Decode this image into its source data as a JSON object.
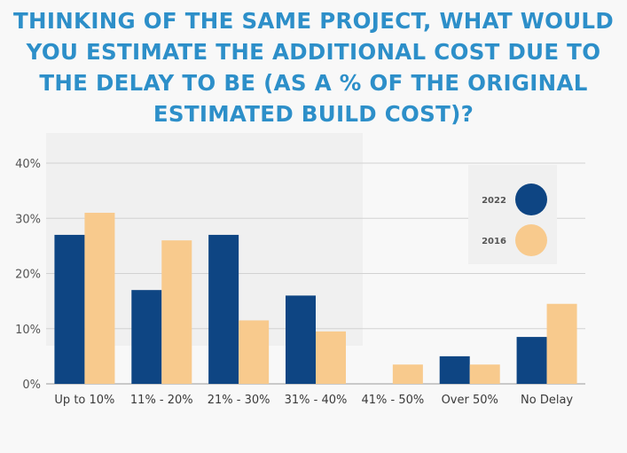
{
  "chart_data": {
    "type": "bar",
    "title_lines": [
      "THINKING OF THE SAME PROJECT, WHAT WOULD",
      "YOU ESTIMATE THE ADDITIONAL COST DUE TO",
      "THE DELAY TO BE (AS A % OF THE ORIGINAL",
      "ESTIMATED BUILD COST)?"
    ],
    "categories": [
      "Up to 10%",
      "11% - 20%",
      "21% - 30%",
      "31% - 40%",
      "41% - 50%",
      "Over 50%",
      "No Delay"
    ],
    "series": [
      {
        "name": "2022",
        "color": "#0e4583",
        "values": [
          27,
          17,
          27,
          16,
          0,
          5,
          8.5
        ]
      },
      {
        "name": "2016",
        "color": "#f8ca8d",
        "values": [
          31,
          26,
          11.5,
          9.5,
          3.5,
          3.5,
          14.5
        ]
      }
    ],
    "yticks": [
      "0%",
      "10%",
      "20%",
      "30%",
      "40%"
    ],
    "ylim": [
      0,
      40
    ],
    "grid": true,
    "legend_position": "right",
    "title_color": "#2d8fc9"
  }
}
